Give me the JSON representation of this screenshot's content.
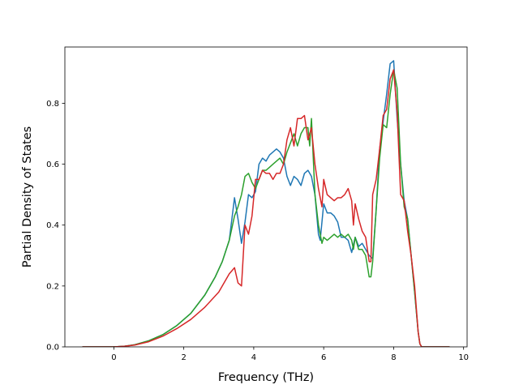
{
  "chart_data": {
    "type": "line",
    "title": "",
    "xlabel": "Frequency (THz)",
    "ylabel": "Partial Density of States",
    "xlim": [
      -1.4,
      10.1
    ],
    "ylim": [
      0.0,
      0.985
    ],
    "xticks": [
      0,
      2,
      4,
      6,
      8,
      10
    ],
    "yticks": [
      0.0,
      0.2,
      0.4,
      0.6,
      0.8
    ],
    "xtick_labels": [
      "0",
      "2",
      "4",
      "6",
      "8",
      "10"
    ],
    "ytick_labels": [
      "0.0",
      "0.2",
      "0.4",
      "0.6",
      "0.8"
    ],
    "grid": false,
    "legend": null,
    "series": [
      {
        "color": "#1f77b4",
        "x": [
          -0.9,
          0.0,
          0.3,
          0.6,
          1.0,
          1.4,
          1.8,
          2.2,
          2.6,
          2.9,
          3.1,
          3.3,
          3.45,
          3.55,
          3.65,
          3.75,
          3.85,
          3.95,
          4.05,
          4.15,
          4.25,
          4.35,
          4.45,
          4.55,
          4.65,
          4.75,
          4.85,
          4.95,
          5.05,
          5.15,
          5.25,
          5.35,
          5.45,
          5.55,
          5.65,
          5.75,
          5.85,
          5.9,
          6.0,
          6.1,
          6.2,
          6.3,
          6.4,
          6.5,
          6.6,
          6.7,
          6.8,
          6.9,
          7.0,
          7.1,
          7.2,
          7.3,
          7.4,
          7.5,
          7.6,
          7.7,
          7.8,
          7.9,
          8.0,
          8.1,
          8.2,
          8.3,
          8.4,
          8.5,
          8.6,
          8.7,
          8.75,
          8.8,
          9.6
        ],
        "y": [
          0.0,
          0.0,
          0.002,
          0.007,
          0.02,
          0.04,
          0.07,
          0.11,
          0.17,
          0.23,
          0.28,
          0.35,
          0.49,
          0.42,
          0.34,
          0.41,
          0.5,
          0.49,
          0.51,
          0.6,
          0.62,
          0.61,
          0.63,
          0.64,
          0.65,
          0.64,
          0.62,
          0.56,
          0.53,
          0.56,
          0.55,
          0.53,
          0.57,
          0.58,
          0.56,
          0.5,
          0.37,
          0.35,
          0.47,
          0.44,
          0.44,
          0.43,
          0.41,
          0.36,
          0.36,
          0.35,
          0.31,
          0.36,
          0.33,
          0.34,
          0.32,
          0.3,
          0.29,
          0.45,
          0.65,
          0.74,
          0.83,
          0.93,
          0.94,
          0.75,
          0.6,
          0.48,
          0.42,
          0.3,
          0.18,
          0.05,
          0.01,
          0.0,
          0.0
        ]
      },
      {
        "color": "#2ca02c",
        "x": [
          -0.9,
          0.0,
          0.3,
          0.6,
          1.0,
          1.4,
          1.8,
          2.2,
          2.6,
          2.9,
          3.1,
          3.3,
          3.45,
          3.55,
          3.65,
          3.75,
          3.85,
          3.95,
          4.05,
          4.15,
          4.25,
          4.35,
          4.45,
          4.55,
          4.65,
          4.75,
          4.85,
          4.95,
          5.05,
          5.15,
          5.25,
          5.35,
          5.45,
          5.55,
          5.6,
          5.65,
          5.75,
          5.85,
          5.95,
          6.0,
          6.1,
          6.2,
          6.3,
          6.4,
          6.5,
          6.6,
          6.7,
          6.8,
          6.85,
          6.9,
          7.0,
          7.1,
          7.2,
          7.3,
          7.35,
          7.4,
          7.5,
          7.6,
          7.7,
          7.8,
          7.9,
          8.0,
          8.1,
          8.2,
          8.3,
          8.4,
          8.5,
          8.6,
          8.7,
          8.75,
          8.8,
          9.6
        ],
        "y": [
          0.0,
          0.0,
          0.002,
          0.007,
          0.02,
          0.04,
          0.07,
          0.11,
          0.17,
          0.23,
          0.28,
          0.35,
          0.43,
          0.46,
          0.5,
          0.56,
          0.57,
          0.54,
          0.52,
          0.55,
          0.58,
          0.58,
          0.59,
          0.6,
          0.61,
          0.62,
          0.6,
          0.64,
          0.67,
          0.7,
          0.66,
          0.7,
          0.72,
          0.72,
          0.66,
          0.75,
          0.5,
          0.4,
          0.34,
          0.36,
          0.35,
          0.36,
          0.37,
          0.36,
          0.37,
          0.36,
          0.37,
          0.35,
          0.32,
          0.36,
          0.32,
          0.32,
          0.3,
          0.23,
          0.23,
          0.28,
          0.45,
          0.62,
          0.73,
          0.72,
          0.83,
          0.91,
          0.85,
          0.6,
          0.46,
          0.42,
          0.3,
          0.18,
          0.05,
          0.01,
          0.0,
          0.0
        ]
      },
      {
        "color": "#d62728",
        "x": [
          -0.9,
          0.0,
          0.3,
          0.6,
          1.0,
          1.4,
          1.8,
          2.2,
          2.6,
          3.0,
          3.3,
          3.45,
          3.55,
          3.65,
          3.75,
          3.85,
          3.95,
          4.05,
          4.15,
          4.25,
          4.35,
          4.45,
          4.55,
          4.65,
          4.75,
          4.85,
          4.95,
          5.05,
          5.15,
          5.25,
          5.35,
          5.45,
          5.55,
          5.65,
          5.75,
          5.85,
          5.95,
          6.0,
          6.1,
          6.2,
          6.3,
          6.4,
          6.5,
          6.6,
          6.7,
          6.8,
          6.85,
          6.9,
          7.0,
          7.1,
          7.2,
          7.3,
          7.35,
          7.4,
          7.5,
          7.6,
          7.7,
          7.8,
          7.9,
          8.0,
          8.1,
          8.2,
          8.3,
          8.4,
          8.5,
          8.6,
          8.7,
          8.75,
          8.8,
          9.6
        ],
        "y": [
          0.0,
          0.0,
          0.002,
          0.006,
          0.017,
          0.035,
          0.06,
          0.09,
          0.13,
          0.18,
          0.24,
          0.26,
          0.21,
          0.2,
          0.4,
          0.37,
          0.43,
          0.55,
          0.55,
          0.58,
          0.57,
          0.57,
          0.55,
          0.57,
          0.57,
          0.6,
          0.68,
          0.72,
          0.66,
          0.75,
          0.75,
          0.76,
          0.68,
          0.72,
          0.6,
          0.52,
          0.46,
          0.55,
          0.5,
          0.49,
          0.48,
          0.49,
          0.49,
          0.5,
          0.52,
          0.48,
          0.4,
          0.47,
          0.42,
          0.38,
          0.36,
          0.28,
          0.28,
          0.5,
          0.55,
          0.65,
          0.76,
          0.78,
          0.88,
          0.91,
          0.77,
          0.5,
          0.48,
          0.38,
          0.3,
          0.2,
          0.05,
          0.01,
          0.0,
          0.0
        ]
      }
    ]
  }
}
